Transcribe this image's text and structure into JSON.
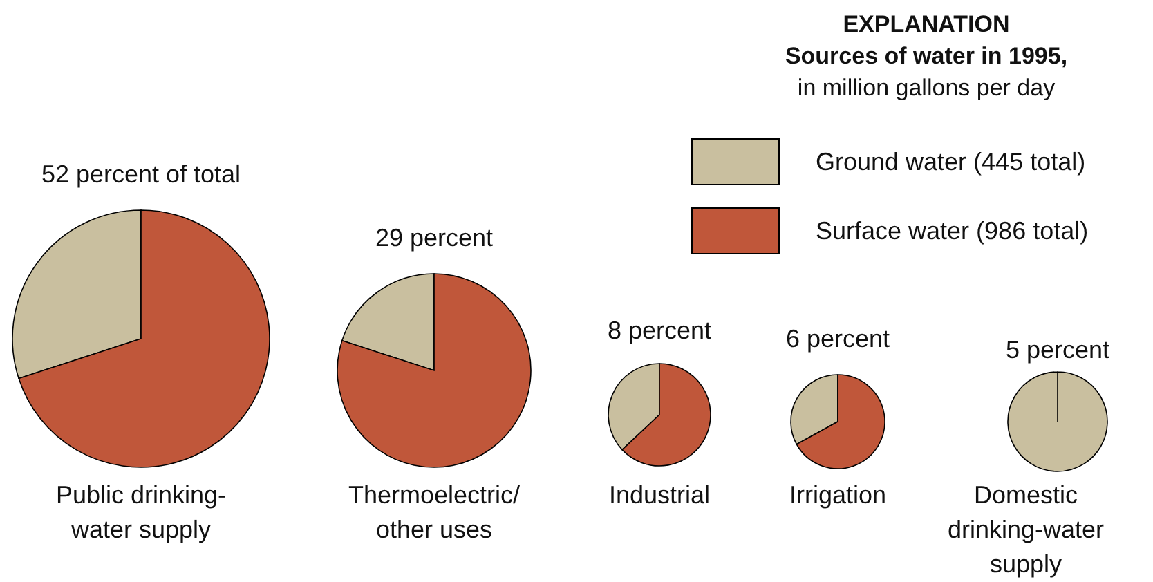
{
  "chart_data": [
    {
      "type": "pie",
      "title": "52 percent of total",
      "xlabel": "Public drinking-\nwater supply",
      "categories": [
        null,
        null
      ],
      "values": [
        30,
        70
      ],
      "colors": [
        "#c9bf9f",
        "#c0573a"
      ]
    },
    {
      "type": "pie",
      "title": "29 percent",
      "xlabel": "Thermoelectric/\nother uses",
      "categories": [
        null,
        null
      ],
      "values": [
        20,
        80
      ],
      "colors": [
        "#c9bf9f",
        "#c0573a"
      ]
    },
    {
      "type": "pie",
      "title": "8 percent",
      "xlabel": "Industrial",
      "categories": [
        null,
        null
      ],
      "values": [
        37,
        63
      ],
      "colors": [
        "#c9bf9f",
        "#c0573a"
      ]
    },
    {
      "type": "pie",
      "title": "6 percent",
      "xlabel": "Irrigation",
      "categories": [
        null,
        null
      ],
      "values": [
        33,
        67
      ],
      "colors": [
        "#c9bf9f",
        "#c0573a"
      ]
    },
    {
      "type": "pie",
      "title": "5 percent",
      "xlabel": "Domestic\ndrinking-water\nsupply",
      "categories": [
        "Ground water (445 total)",
        "Surface water (986 total)"
      ],
      "values": [
        100,
        0
      ],
      "colors": [
        "#c9bf9f",
        "#c0573a"
      ],
      "legend": "top left",
      "legend_title": "EXPLANATION\nSources of water in 1995,\nin million gallons per day"
    }
  ]
}
